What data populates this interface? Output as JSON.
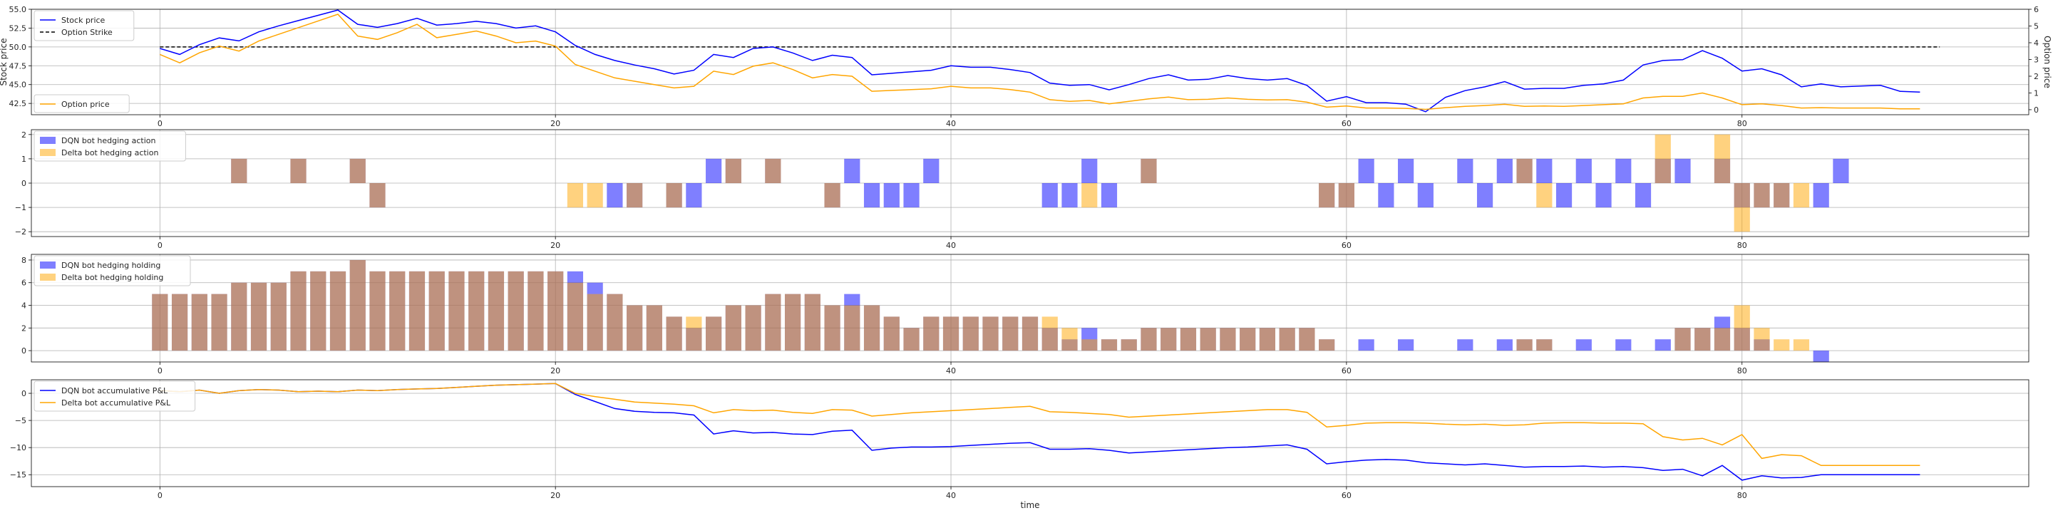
{
  "chart_data": [
    {
      "type": "line",
      "ylabel": "Stock price",
      "y2label": "Option price",
      "xlim": [
        -6.5,
        94.5
      ],
      "ylim": [
        41,
        55
      ],
      "y2lim": [
        -0.3,
        6
      ],
      "xticks": [
        0,
        20,
        40,
        60,
        80
      ],
      "yticks": [
        42.5,
        45.0,
        47.5,
        50.0,
        52.5,
        55.0
      ],
      "y2ticks": [
        0,
        1,
        2,
        3,
        4,
        5,
        6
      ],
      "grid": true,
      "legend": "upper-left",
      "legend2": "lower-left",
      "strike": 50.0,
      "strike_label": "Option Strike",
      "series": [
        {
          "name": "Stock price",
          "color": "#0000ff",
          "axis": "left",
          "values": [
            49.8,
            49.0,
            50.3,
            51.2,
            50.8,
            52.0,
            52.8,
            53.5,
            54.2,
            54.9,
            53.0,
            52.6,
            53.1,
            53.8,
            52.9,
            53.1,
            53.4,
            53.1,
            52.5,
            52.8,
            52.0,
            50.2,
            49.0,
            48.2,
            47.6,
            47.1,
            46.4,
            46.9,
            49.0,
            48.6,
            49.8,
            50.0,
            49.2,
            48.2,
            48.9,
            48.6,
            46.3,
            46.5,
            46.7,
            46.9,
            47.5,
            47.3,
            47.3,
            47.0,
            46.6,
            45.2,
            44.9,
            45.0,
            44.3,
            45.0,
            45.8,
            46.3,
            45.6,
            45.7,
            46.2,
            45.8,
            45.6,
            45.8,
            44.9,
            42.8,
            43.4,
            42.6,
            42.6,
            42.4,
            41.4,
            43.3,
            44.2,
            44.7,
            45.4,
            44.4,
            44.5,
            44.5,
            44.9,
            45.1,
            45.6,
            47.6,
            48.2,
            48.3,
            49.5,
            48.5,
            46.8,
            47.1,
            46.3,
            44.7,
            45.1,
            44.7,
            44.8,
            44.9,
            44.1,
            44.0
          ]
        },
        {
          "name": "Option price",
          "color": "#ffa500",
          "axis": "right",
          "values": [
            3.3,
            2.8,
            3.4,
            3.8,
            3.5,
            4.1,
            4.5,
            4.9,
            5.3,
            5.7,
            4.4,
            4.2,
            4.6,
            5.1,
            4.3,
            4.5,
            4.7,
            4.4,
            4.0,
            4.1,
            3.8,
            2.7,
            2.3,
            1.9,
            1.7,
            1.5,
            1.3,
            1.4,
            2.3,
            2.1,
            2.6,
            2.8,
            2.4,
            1.9,
            2.1,
            2.0,
            1.1,
            1.15,
            1.2,
            1.25,
            1.4,
            1.3,
            1.3,
            1.2,
            1.05,
            0.6,
            0.5,
            0.55,
            0.35,
            0.5,
            0.65,
            0.75,
            0.6,
            0.62,
            0.7,
            0.62,
            0.58,
            0.6,
            0.45,
            0.15,
            0.22,
            0.1,
            0.1,
            0.08,
            0.02,
            0.12,
            0.2,
            0.25,
            0.32,
            0.2,
            0.22,
            0.2,
            0.25,
            0.3,
            0.35,
            0.7,
            0.8,
            0.8,
            1.0,
            0.7,
            0.3,
            0.35,
            0.25,
            0.1,
            0.12,
            0.1,
            0.1,
            0.1,
            0.05,
            0.05
          ]
        }
      ]
    },
    {
      "type": "bar",
      "xlim": [
        -6.5,
        94.5
      ],
      "ylim": [
        -2.2,
        2.2
      ],
      "xticks": [
        0,
        20,
        40,
        60,
        80
      ],
      "yticks": [
        -2,
        -1,
        0,
        1,
        2
      ],
      "grid": true,
      "legend": "upper-left",
      "series": [
        {
          "name": "DQN bot hedging action",
          "color": "#0000ff",
          "alpha": 0.5,
          "points": [
            [
              4,
              1
            ],
            [
              7,
              1
            ],
            [
              10,
              1
            ],
            [
              11,
              -1
            ],
            [
              23,
              -1
            ],
            [
              24,
              -1
            ],
            [
              26,
              -1
            ],
            [
              27,
              -1
            ],
            [
              28,
              1
            ],
            [
              29,
              1
            ],
            [
              31,
              1
            ],
            [
              34,
              -1
            ],
            [
              35,
              1
            ],
            [
              36,
              -1
            ],
            [
              37,
              -1
            ],
            [
              38,
              -1
            ],
            [
              39,
              1
            ],
            [
              45,
              -1
            ],
            [
              46,
              -1
            ],
            [
              47,
              1
            ],
            [
              48,
              -1
            ],
            [
              50,
              1
            ],
            [
              59,
              -1
            ],
            [
              60,
              -1
            ],
            [
              61,
              1
            ],
            [
              62,
              -1
            ],
            [
              63,
              1
            ],
            [
              64,
              -1
            ],
            [
              66,
              1
            ],
            [
              67,
              -1
            ],
            [
              68,
              1
            ],
            [
              69,
              1
            ],
            [
              70,
              1
            ],
            [
              71,
              -1
            ],
            [
              72,
              1
            ],
            [
              73,
              -1
            ],
            [
              74,
              1
            ],
            [
              75,
              -1
            ],
            [
              76,
              1
            ],
            [
              77,
              1
            ],
            [
              79,
              1
            ],
            [
              80,
              -1
            ],
            [
              81,
              -1
            ],
            [
              82,
              -1
            ],
            [
              84,
              -1
            ],
            [
              85,
              1
            ]
          ]
        },
        {
          "name": "Delta bot hedging action",
          "color": "#ffa500",
          "alpha": 0.5,
          "points": [
            [
              4,
              1
            ],
            [
              7,
              1
            ],
            [
              10,
              1
            ],
            [
              11,
              -1
            ],
            [
              21,
              -1
            ],
            [
              22,
              -1
            ],
            [
              24,
              -1
            ],
            [
              26,
              -1
            ],
            [
              29,
              1
            ],
            [
              31,
              1
            ],
            [
              34,
              -1
            ],
            [
              47,
              -1
            ],
            [
              50,
              1
            ],
            [
              59,
              -1
            ],
            [
              60,
              -1
            ],
            [
              69,
              1
            ],
            [
              70,
              -1
            ],
            [
              76,
              2
            ],
            [
              79,
              2
            ],
            [
              80,
              -2
            ],
            [
              81,
              -1
            ],
            [
              82,
              -1
            ],
            [
              83,
              -1
            ]
          ]
        }
      ]
    },
    {
      "type": "bar",
      "xlim": [
        -6.5,
        94.5
      ],
      "ylim": [
        -1.0,
        8.5
      ],
      "xticks": [
        0,
        20,
        40,
        60,
        80
      ],
      "yticks": [
        0,
        2,
        4,
        6,
        8
      ],
      "grid": true,
      "legend": "upper-left",
      "series": [
        {
          "name": "DQN bot hedging holding",
          "color": "#0000ff",
          "alpha": 0.5,
          "values": [
            5,
            5,
            5,
            5,
            6,
            6,
            6,
            7,
            7,
            7,
            8,
            7,
            7,
            7,
            7,
            7,
            7,
            7,
            7,
            7,
            7,
            7,
            6,
            5,
            4,
            4,
            3,
            2,
            3,
            4,
            4,
            5,
            5,
            5,
            4,
            5,
            4,
            3,
            2,
            3,
            3,
            3,
            3,
            3,
            3,
            2,
            1,
            2,
            1,
            1,
            2,
            2,
            2,
            2,
            2,
            2,
            2,
            2,
            2,
            1,
            0,
            1,
            0,
            1,
            0,
            0,
            1,
            0,
            1,
            1,
            1,
            0,
            1,
            0,
            1,
            0,
            1,
            2,
            2,
            3,
            2,
            1,
            0,
            0,
            -1
          ]
        },
        {
          "name": "Delta bot hedging holding",
          "color": "#ffa500",
          "alpha": 0.5,
          "values": [
            5,
            5,
            5,
            5,
            6,
            6,
            6,
            7,
            7,
            7,
            8,
            7,
            7,
            7,
            7,
            7,
            7,
            7,
            7,
            7,
            7,
            6,
            5,
            5,
            4,
            4,
            3,
            3,
            3,
            4,
            4,
            5,
            5,
            5,
            4,
            4,
            4,
            3,
            2,
            3,
            3,
            3,
            3,
            3,
            3,
            3,
            2,
            1,
            1,
            1,
            2,
            2,
            2,
            2,
            2,
            2,
            2,
            2,
            2,
            1,
            0,
            0,
            0,
            0,
            0,
            0,
            0,
            0,
            0,
            1,
            1,
            0,
            0,
            0,
            0,
            0,
            0,
            2,
            2,
            2,
            4,
            2,
            1,
            1,
            0,
            0
          ]
        }
      ]
    },
    {
      "type": "line",
      "xlabel": "time",
      "xlim": [
        -6.5,
        94.5
      ],
      "ylim": [
        -17.2,
        2.5
      ],
      "xticks": [
        0,
        20,
        40,
        60,
        80
      ],
      "yticks": [
        -15,
        -10,
        -5,
        0
      ],
      "grid": true,
      "legend": "upper-left",
      "series": [
        {
          "name": "DQN bot accumulative P&L",
          "color": "#0000ff",
          "values": [
            0.5,
            0.3,
            0.6,
            0.0,
            0.5,
            0.7,
            0.6,
            0.3,
            0.4,
            0.3,
            0.6,
            0.5,
            0.7,
            0.8,
            0.9,
            1.1,
            1.3,
            1.5,
            1.6,
            1.7,
            1.8,
            -0.2,
            -1.5,
            -2.8,
            -3.3,
            -3.5,
            -3.6,
            -4.0,
            -7.5,
            -6.9,
            -7.3,
            -7.2,
            -7.5,
            -7.6,
            -7.0,
            -6.8,
            -10.5,
            -10.1,
            -9.9,
            -9.9,
            -9.8,
            -9.6,
            -9.4,
            -9.2,
            -9.1,
            -10.3,
            -10.3,
            -10.2,
            -10.5,
            -11.0,
            -10.8,
            -10.6,
            -10.4,
            -10.2,
            -10.0,
            -9.9,
            -9.7,
            -9.5,
            -10.3,
            -13.0,
            -12.6,
            -12.3,
            -12.2,
            -12.3,
            -12.8,
            -13.0,
            -13.2,
            -13.0,
            -13.3,
            -13.6,
            -13.5,
            -13.5,
            -13.4,
            -13.6,
            -13.5,
            -13.7,
            -14.2,
            -14.0,
            -15.2,
            -13.3,
            -16.0,
            -15.2,
            -15.6,
            -15.5,
            -15.0,
            -15.0,
            -15.0,
            -15.0,
            -15.0,
            -15.0
          ]
        },
        {
          "name": "Delta bot accumulative P&L",
          "color": "#ffa500",
          "values": [
            0.5,
            0.3,
            0.6,
            0.0,
            0.5,
            0.7,
            0.6,
            0.3,
            0.4,
            0.3,
            0.6,
            0.5,
            0.7,
            0.8,
            0.9,
            1.1,
            1.3,
            1.5,
            1.6,
            1.7,
            1.8,
            0.0,
            -0.6,
            -1.1,
            -1.6,
            -1.8,
            -2.0,
            -2.3,
            -3.6,
            -3.0,
            -3.2,
            -3.1,
            -3.5,
            -3.7,
            -3.0,
            -3.1,
            -4.2,
            -3.9,
            -3.6,
            -3.4,
            -3.2,
            -3.0,
            -2.8,
            -2.6,
            -2.4,
            -3.4,
            -3.5,
            -3.7,
            -3.9,
            -4.4,
            -4.2,
            -4.0,
            -3.8,
            -3.6,
            -3.4,
            -3.2,
            -3.0,
            -3.0,
            -3.5,
            -6.2,
            -5.9,
            -5.5,
            -5.4,
            -5.4,
            -5.5,
            -5.7,
            -5.8,
            -5.7,
            -5.9,
            -5.8,
            -5.5,
            -5.4,
            -5.4,
            -5.5,
            -5.5,
            -5.6,
            -8.0,
            -8.6,
            -8.3,
            -9.5,
            -7.6,
            -12.0,
            -11.3,
            -11.5,
            -13.3,
            -13.3,
            -13.3,
            -13.3,
            -13.3,
            -13.3
          ]
        }
      ]
    }
  ]
}
